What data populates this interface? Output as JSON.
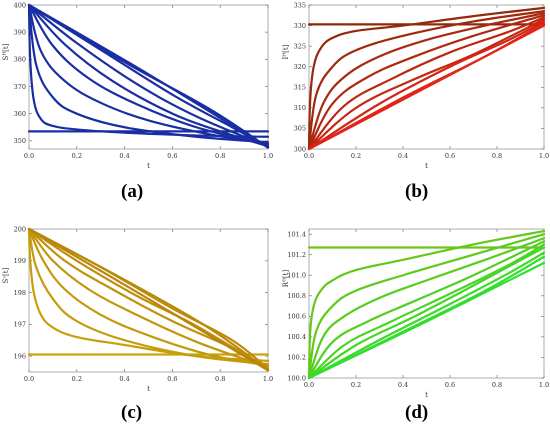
{
  "chart_data": [
    {
      "type": "line",
      "panel": "a",
      "label_text": "(a)",
      "xlabel": "t",
      "ylabel": "Sᴴ[t]",
      "xlim": [
        0,
        1
      ],
      "ylim": [
        347,
        400
      ],
      "xticks": [
        0.0,
        0.2,
        0.4,
        0.6,
        0.8,
        1.0
      ],
      "yticks": [
        350,
        360,
        370,
        380,
        390,
        400
      ],
      "color": "#1a2ea3",
      "series": [
        {
          "values": [
            [
              0,
              353.5
            ],
            [
              1,
              353.5
            ]
          ]
        },
        {
          "values": [
            [
              0,
              400
            ],
            [
              0.005,
              380
            ],
            [
              0.02,
              365
            ],
            [
              0.05,
              358
            ],
            [
              0.1,
              355.5
            ],
            [
              0.2,
              354.2
            ],
            [
              0.4,
              353
            ],
            [
              0.7,
              352
            ],
            [
              1,
              351.5
            ]
          ]
        },
        {
          "values": [
            [
              0,
              400
            ],
            [
              0.03,
              378
            ],
            [
              0.1,
              366
            ],
            [
              0.2,
              360
            ],
            [
              0.4,
              355
            ],
            [
              0.7,
              351.5
            ],
            [
              1,
              349.5
            ]
          ]
        },
        {
          "values": [
            [
              0,
              400
            ],
            [
              0.05,
              383
            ],
            [
              0.15,
              372
            ],
            [
              0.3,
              364
            ],
            [
              0.5,
              357.5
            ],
            [
              0.75,
              352.5
            ],
            [
              1,
              349
            ]
          ]
        },
        {
          "values": [
            [
              0,
              400
            ],
            [
              0.1,
              385
            ],
            [
              0.25,
              373
            ],
            [
              0.45,
              363.5
            ],
            [
              0.7,
              355
            ],
            [
              1,
              348.5
            ]
          ]
        },
        {
          "values": [
            [
              0,
              400
            ],
            [
              0.15,
              385.5
            ],
            [
              0.35,
              372
            ],
            [
              0.6,
              360
            ],
            [
              0.8,
              353.5
            ],
            [
              1,
              348
            ]
          ]
        },
        {
          "values": [
            [
              0,
              400
            ],
            [
              0.2,
              386
            ],
            [
              0.45,
              371
            ],
            [
              0.7,
              359
            ],
            [
              1,
              348
            ]
          ]
        },
        {
          "values": [
            [
              0,
              400
            ],
            [
              0.3,
              383.5
            ],
            [
              0.6,
              367
            ],
            [
              0.85,
              355
            ],
            [
              1,
              347.8
            ]
          ]
        },
        {
          "values": [
            [
              0,
              400
            ],
            [
              0.4,
              379
            ],
            [
              0.75,
              362
            ],
            [
              1,
              347.6
            ]
          ]
        },
        {
          "values": [
            [
              0,
              400
            ],
            [
              0.5,
              374.5
            ],
            [
              1,
              347.5
            ]
          ]
        }
      ]
    },
    {
      "type": "line",
      "panel": "b",
      "label_text": "(b)",
      "xlabel": "t",
      "ylabel": "Iᴴ[t]",
      "xlim": [
        0,
        1
      ],
      "ylim": [
        300,
        335
      ],
      "xticks": [
        0.0,
        0.2,
        0.4,
        0.6,
        0.8,
        1.0
      ],
      "yticks": [
        300,
        305,
        310,
        315,
        320,
        325,
        330,
        335
      ],
      "color": "#8b2a0a",
      "color_end": "#e52418",
      "series": [
        {
          "values": [
            [
              0,
              330.3
            ],
            [
              0.6,
              330.3
            ],
            [
              1,
              330.3
            ]
          ]
        },
        {
          "values": [
            [
              0,
              300
            ],
            [
              0.005,
              312
            ],
            [
              0.02,
              320
            ],
            [
              0.05,
              324.5
            ],
            [
              0.1,
              327
            ],
            [
              0.2,
              328.7
            ],
            [
              0.4,
              330
            ],
            [
              0.7,
              332.3
            ],
            [
              1,
              334.3
            ]
          ]
        },
        {
          "values": [
            [
              0,
              300
            ],
            [
              0.03,
              313
            ],
            [
              0.1,
              320
            ],
            [
              0.2,
              324
            ],
            [
              0.4,
              327.5
            ],
            [
              0.7,
              331
            ],
            [
              1,
              333.5
            ]
          ]
        },
        {
          "values": [
            [
              0,
              300
            ],
            [
              0.06,
              311
            ],
            [
              0.15,
              317.5
            ],
            [
              0.3,
              322.5
            ],
            [
              0.5,
              326.5
            ],
            [
              0.75,
              330
            ],
            [
              1,
              333
            ]
          ]
        },
        {
          "values": [
            [
              0,
              300
            ],
            [
              0.1,
              311
            ],
            [
              0.25,
              317.5
            ],
            [
              0.45,
              322.5
            ],
            [
              0.7,
              327.5
            ],
            [
              1,
              332.5
            ]
          ]
        },
        {
          "values": [
            [
              0,
              300
            ],
            [
              0.15,
              310.5
            ],
            [
              0.35,
              317
            ],
            [
              0.6,
              323.5
            ],
            [
              0.85,
              328.5
            ],
            [
              1,
              332
            ]
          ]
        },
        {
          "values": [
            [
              0,
              300
            ],
            [
              0.2,
              310
            ],
            [
              0.45,
              317
            ],
            [
              0.7,
              323
            ],
            [
              1,
              331.5
            ]
          ]
        },
        {
          "values": [
            [
              0,
              300
            ],
            [
              0.3,
              311
            ],
            [
              0.6,
              320
            ],
            [
              0.85,
              326.5
            ],
            [
              1,
              331
            ]
          ]
        },
        {
          "values": [
            [
              0,
              300
            ],
            [
              0.4,
              312.5
            ],
            [
              0.75,
              322.5
            ],
            [
              1,
              330.5
            ]
          ]
        },
        {
          "values": [
            [
              0,
              300
            ],
            [
              0.5,
              315
            ],
            [
              1,
              330
            ]
          ]
        }
      ]
    },
    {
      "type": "line",
      "panel": "c",
      "label_text": "(c)",
      "xlabel": "t",
      "ylabel": "Sᵛ[t]",
      "xlim": [
        0,
        1
      ],
      "ylim": [
        195.5,
        200
      ],
      "xticks": [
        0.0,
        0.2,
        0.4,
        0.6,
        0.8,
        1.0
      ],
      "yticks": [
        196,
        197,
        198,
        199,
        200
      ],
      "color": "#c9a20c",
      "color_end": "#b8860b",
      "series": [
        {
          "values": [
            [
              0,
              196.05
            ],
            [
              0.6,
              196.05
            ],
            [
              1,
              196.05
            ]
          ]
        },
        {
          "values": [
            [
              0,
              200
            ],
            [
              0.005,
              199.0
            ],
            [
              0.02,
              198.0
            ],
            [
              0.05,
              197.3
            ],
            [
              0.1,
              196.9
            ],
            [
              0.2,
              196.6
            ],
            [
              0.4,
              196.35
            ],
            [
              0.7,
              196.0
            ],
            [
              1,
              195.85
            ]
          ]
        },
        {
          "values": [
            [
              0,
              200
            ],
            [
              0.03,
              198.8
            ],
            [
              0.1,
              197.8
            ],
            [
              0.2,
              197.1
            ],
            [
              0.4,
              196.5
            ],
            [
              0.7,
              196.0
            ],
            [
              1,
              195.75
            ]
          ]
        },
        {
          "values": [
            [
              0,
              200
            ],
            [
              0.06,
              199.0
            ],
            [
              0.15,
              198.1
            ],
            [
              0.3,
              197.3
            ],
            [
              0.5,
              196.65
            ],
            [
              0.75,
              196.05
            ],
            [
              1,
              195.7
            ]
          ]
        },
        {
          "values": [
            [
              0,
              200
            ],
            [
              0.1,
              199.0
            ],
            [
              0.25,
              198.1
            ],
            [
              0.45,
              197.3
            ],
            [
              0.7,
              196.45
            ],
            [
              1,
              195.65
            ]
          ]
        },
        {
          "values": [
            [
              0,
              200
            ],
            [
              0.15,
              199.0
            ],
            [
              0.35,
              198.1
            ],
            [
              0.6,
              197.1
            ],
            [
              0.85,
              196.25
            ],
            [
              1,
              195.6
            ]
          ]
        },
        {
          "values": [
            [
              0,
              200
            ],
            [
              0.2,
              199.0
            ],
            [
              0.45,
              197.9
            ],
            [
              0.7,
              196.95
            ],
            [
              1,
              195.6
            ]
          ]
        },
        {
          "values": [
            [
              0,
              200
            ],
            [
              0.3,
              198.8
            ],
            [
              0.6,
              197.5
            ],
            [
              0.85,
              196.5
            ],
            [
              1,
              195.6
            ]
          ]
        },
        {
          "values": [
            [
              0,
              200
            ],
            [
              0.4,
              198.4
            ],
            [
              0.75,
              196.9
            ],
            [
              1,
              195.55
            ]
          ]
        },
        {
          "values": [
            [
              0,
              200
            ],
            [
              0.5,
              197.8
            ],
            [
              1,
              195.55
            ]
          ]
        }
      ]
    },
    {
      "type": "line",
      "panel": "d",
      "label_text": "(d)",
      "xlabel": "t",
      "ylabel": "Rᴴ[t]",
      "xlim": [
        0,
        1
      ],
      "ylim": [
        100.0,
        101.45
      ],
      "xticks": [
        0.0,
        0.2,
        0.4,
        0.6,
        0.8,
        1.0
      ],
      "yticks": [
        100.0,
        100.2,
        100.4,
        100.6,
        100.8,
        101.0,
        101.2,
        101.4
      ],
      "color": "#6cc416",
      "color_end": "#2ee02e",
      "series": [
        {
          "values": [
            [
              0,
              101.27
            ],
            [
              0.6,
              101.27
            ],
            [
              1,
              101.27
            ]
          ]
        },
        {
          "values": [
            [
              0,
              100.0
            ],
            [
              0.005,
              100.45
            ],
            [
              0.02,
              100.7
            ],
            [
              0.05,
              100.85
            ],
            [
              0.1,
              100.95
            ],
            [
              0.2,
              101.05
            ],
            [
              0.4,
              101.15
            ],
            [
              0.7,
              101.3
            ],
            [
              1,
              101.43
            ]
          ]
        },
        {
          "values": [
            [
              0,
              100.0
            ],
            [
              0.03,
              100.45
            ],
            [
              0.1,
              100.7
            ],
            [
              0.2,
              100.85
            ],
            [
              0.4,
              101.0
            ],
            [
              0.7,
              101.2
            ],
            [
              1,
              101.4
            ]
          ]
        },
        {
          "values": [
            [
              0,
              100.0
            ],
            [
              0.06,
              100.4
            ],
            [
              0.15,
              100.6
            ],
            [
              0.3,
              100.78
            ],
            [
              0.5,
              100.95
            ],
            [
              0.75,
              101.15
            ],
            [
              1,
              101.36
            ]
          ]
        },
        {
          "values": [
            [
              0,
              100.0
            ],
            [
              0.1,
              100.35
            ],
            [
              0.25,
              100.55
            ],
            [
              0.45,
              100.75
            ],
            [
              0.7,
              101.0
            ],
            [
              1,
              101.33
            ]
          ]
        },
        {
          "values": [
            [
              0,
              100.0
            ],
            [
              0.15,
              100.32
            ],
            [
              0.35,
              100.55
            ],
            [
              0.6,
              100.82
            ],
            [
              0.85,
              101.1
            ],
            [
              1,
              101.3
            ]
          ]
        },
        {
          "values": [
            [
              0,
              100.0
            ],
            [
              0.2,
              100.32
            ],
            [
              0.45,
              100.6
            ],
            [
              0.7,
              100.9
            ],
            [
              1,
              101.27
            ]
          ]
        },
        {
          "values": [
            [
              0,
              100.0
            ],
            [
              0.3,
              100.37
            ],
            [
              0.6,
              100.72
            ],
            [
              0.85,
              101.02
            ],
            [
              1,
              101.22
            ]
          ]
        },
        {
          "values": [
            [
              0,
              100.0
            ],
            [
              0.4,
              100.45
            ],
            [
              0.75,
              100.85
            ],
            [
              1,
              101.18
            ]
          ]
        },
        {
          "values": [
            [
              0,
              100.0
            ],
            [
              0.5,
              100.55
            ],
            [
              1,
              101.12
            ]
          ]
        }
      ]
    }
  ]
}
